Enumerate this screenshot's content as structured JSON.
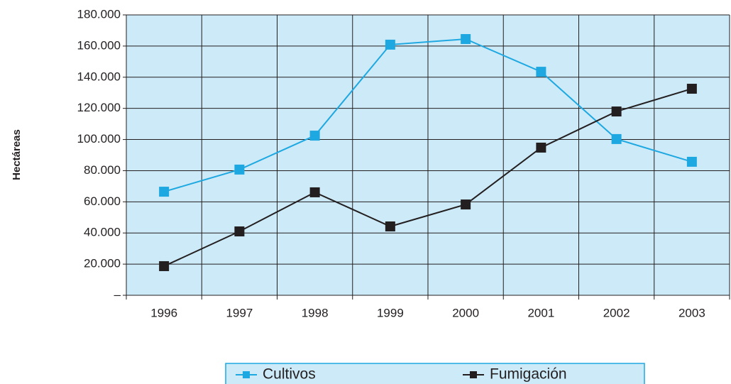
{
  "chart_data": {
    "type": "line",
    "y_label": "Hectáreas",
    "categories": [
      "1996",
      "1997",
      "1998",
      "1999",
      "2000",
      "2001",
      "2002",
      "2003"
    ],
    "series": [
      {
        "name": "Cultivos",
        "color": "#1ea8e1",
        "values": [
          66500,
          80700,
          102500,
          160900,
          164500,
          143500,
          100300,
          85700
        ]
      },
      {
        "name": "Fumigación",
        "color": "#231f20",
        "values": [
          18700,
          41000,
          66100,
          44200,
          58300,
          94800,
          118000,
          132600
        ]
      }
    ],
    "ylim": [
      0,
      180000
    ],
    "yticks": [
      {
        "value": 0,
        "label": "–"
      },
      {
        "value": 20000,
        "label": "20.000"
      },
      {
        "value": 40000,
        "label": "40.000"
      },
      {
        "value": 60000,
        "label": "60.000"
      },
      {
        "value": 80000,
        "label": "80.000"
      },
      {
        "value": 100000,
        "label": "100.000"
      },
      {
        "value": 120000,
        "label": "120.000"
      },
      {
        "value": 140000,
        "label": "140.000"
      },
      {
        "value": 160000,
        "label": "160.000"
      },
      {
        "value": 180000,
        "label": "180.000"
      }
    ],
    "grid": true,
    "legend": "bottom"
  }
}
